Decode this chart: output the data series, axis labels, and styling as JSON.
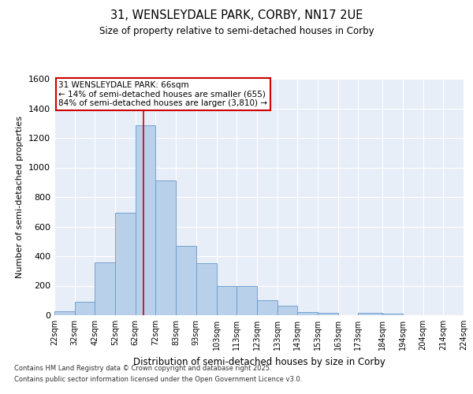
{
  "title_line1": "31, WENSLEYDALE PARK, CORBY, NN17 2UE",
  "title_line2": "Size of property relative to semi-detached houses in Corby",
  "xlabel": "Distribution of semi-detached houses by size in Corby",
  "ylabel": "Number of semi-detached properties",
  "footnote1": "Contains HM Land Registry data © Crown copyright and database right 2025.",
  "footnote2": "Contains public sector information licensed under the Open Government Licence v3.0.",
  "annotation_title": "31 WENSLEYDALE PARK: 66sqm",
  "annotation_line2": "← 14% of semi-detached houses are smaller (655)",
  "annotation_line3": "84% of semi-detached houses are larger (3,810) →",
  "property_size": 66,
  "bin_edges": [
    22,
    32,
    42,
    52,
    62,
    72,
    82,
    92,
    102,
    112,
    122,
    132,
    142,
    152,
    162,
    172,
    184,
    194,
    204,
    214,
    224
  ],
  "bin_labels": [
    "22sqm",
    "32sqm",
    "42sqm",
    "52sqm",
    "62sqm",
    "72sqm",
    "83sqm",
    "93sqm",
    "103sqm",
    "113sqm",
    "123sqm",
    "133sqm",
    "143sqm",
    "153sqm",
    "163sqm",
    "173sqm",
    "184sqm",
    "194sqm",
    "204sqm",
    "214sqm",
    "224sqm"
  ],
  "bar_heights": [
    25,
    90,
    360,
    695,
    1285,
    910,
    470,
    350,
    200,
    200,
    100,
    65,
    20,
    15,
    0,
    15,
    10,
    0,
    0,
    0
  ],
  "bar_color": "#b8d0ea",
  "bar_edge_color": "#6699cc",
  "vline_color": "#cc0000",
  "vline_x": 66,
  "annotation_box_color": "#cc0000",
  "ylim": [
    0,
    1600
  ],
  "yticks": [
    0,
    200,
    400,
    600,
    800,
    1000,
    1200,
    1400,
    1600
  ],
  "background_color": "#e8eef8",
  "grid_color": "#ffffff",
  "fig_bg": "#ffffff"
}
